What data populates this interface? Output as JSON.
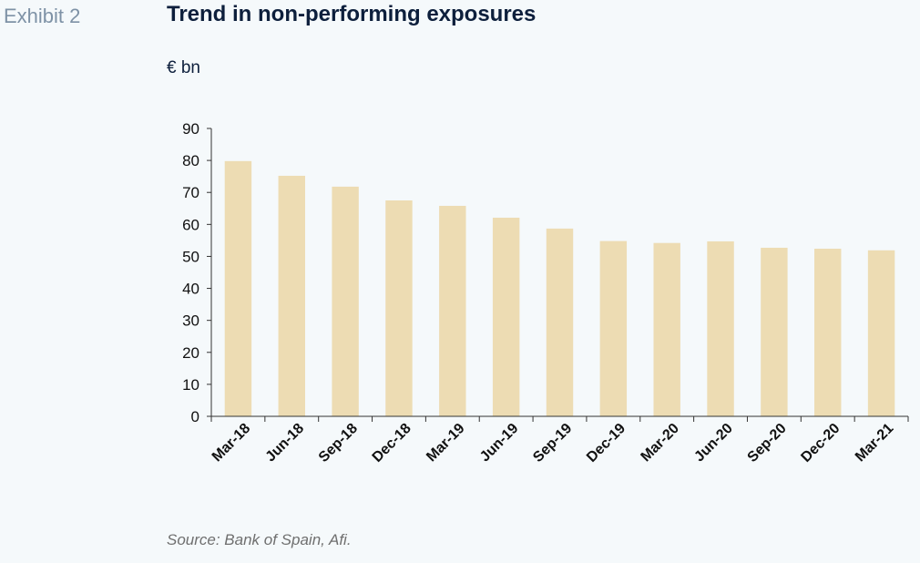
{
  "header": {
    "exhibit": "Exhibit 2",
    "title": "Trend in non-performing exposures",
    "unit": "€ bn"
  },
  "footer": {
    "source": "Source: Bank of Spain, Afi."
  },
  "colors": {
    "bar": "#eddcb3",
    "axis": "#333333",
    "text": "#111111"
  },
  "chart_data": {
    "type": "bar",
    "title": "Trend in non-performing exposures",
    "ylabel": "€ bn",
    "xlabel": "",
    "categories": [
      "Mar-18",
      "Jun-18",
      "Sep-18",
      "Dec-18",
      "Mar-19",
      "Jun-19",
      "Sep-19",
      "Dec-19",
      "Mar-20",
      "Jun-20",
      "Sep-20",
      "Dec-20",
      "Mar-21"
    ],
    "values": [
      79.8,
      75.2,
      71.8,
      67.5,
      65.8,
      62.1,
      58.7,
      54.8,
      54.2,
      54.7,
      52.7,
      52.4,
      51.9
    ],
    "ylim": [
      0,
      90
    ],
    "yticks": [
      0,
      10,
      20,
      30,
      40,
      50,
      60,
      70,
      80,
      90
    ],
    "grid": false,
    "legend": "none"
  }
}
